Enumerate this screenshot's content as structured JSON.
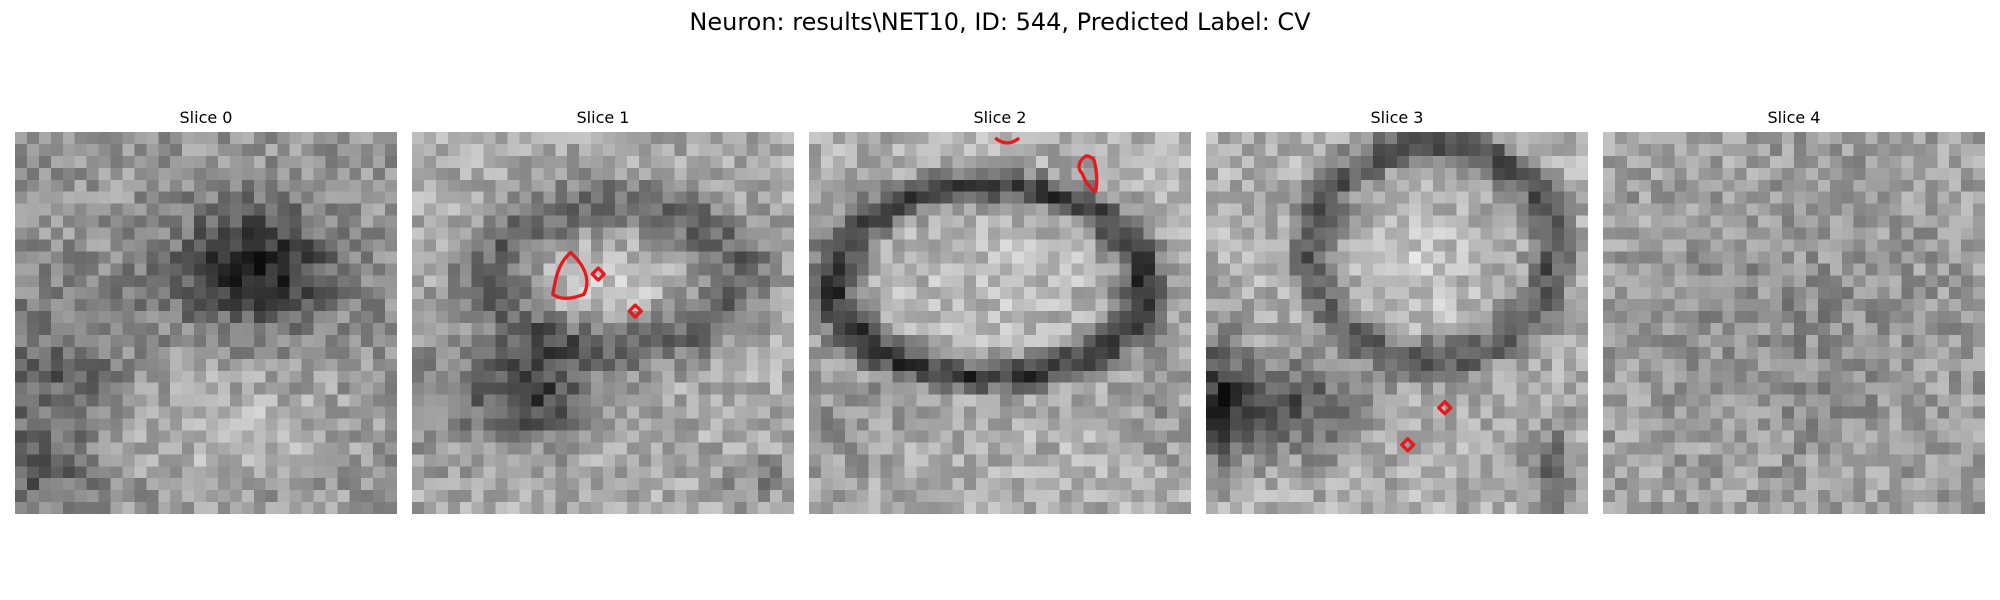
{
  "figure": {
    "title": "Neuron: results\\NET10, ID: 544, Predicted Label: CV"
  },
  "panels": [
    {
      "title": "Slice 0"
    },
    {
      "title": "Slice 1"
    },
    {
      "title": "Slice 2"
    },
    {
      "title": "Slice 3"
    },
    {
      "title": "Slice 4"
    }
  ],
  "colors": {
    "contour": "#e41a1c",
    "background": "#ffffff"
  }
}
